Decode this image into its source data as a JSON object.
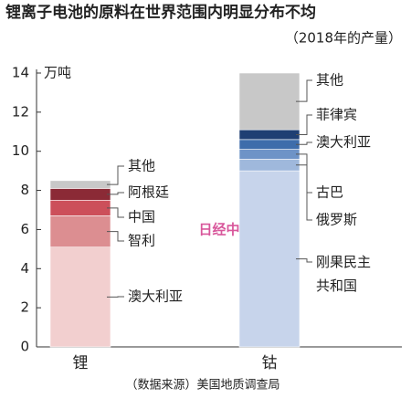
{
  "chart_data": {
    "type": "stacked-bar",
    "title": "锂离子电池的原料在世界范围内明显分布不均",
    "subtitle": "（2018年的产量）",
    "y_unit": "万吨",
    "source": "（数据来源）美国地质调查局",
    "watermark": "日经中文网",
    "ylim": [
      0,
      14
    ],
    "yticks": [
      0,
      2,
      4,
      6,
      8,
      10,
      12,
      14
    ],
    "grid": false,
    "stacks": [
      {
        "category": "锂",
        "segments": [
          {
            "name": "澳大利亚",
            "color": "#f2cfcf",
            "value": 5.1
          },
          {
            "name": "智利",
            "color": "#dc8e91",
            "value": 1.6
          },
          {
            "name": "中国",
            "color": "#cc4f5a",
            "value": 0.8
          },
          {
            "name": "阿根廷",
            "color": "#8b2a36",
            "value": 0.6
          },
          {
            "name": "其他",
            "color": "#c8c8c8",
            "value": 0.4
          }
        ]
      },
      {
        "category": "钴",
        "segments": [
          {
            "name": "刚果民主共和国",
            "color": "#c7d4eb",
            "value": 9.0
          },
          {
            "name": "俄罗斯",
            "color": "#9fb8dc",
            "value": 0.6
          },
          {
            "name": "古巴",
            "color": "#6e93c7",
            "value": 0.5
          },
          {
            "name": "澳大利亚",
            "color": "#3e6dab",
            "value": 0.5
          },
          {
            "name": "菲律宾",
            "color": "#1f3f73",
            "value": 0.5
          },
          {
            "name": "其他",
            "color": "#c8c8c8",
            "value": 2.9
          }
        ]
      }
    ]
  }
}
